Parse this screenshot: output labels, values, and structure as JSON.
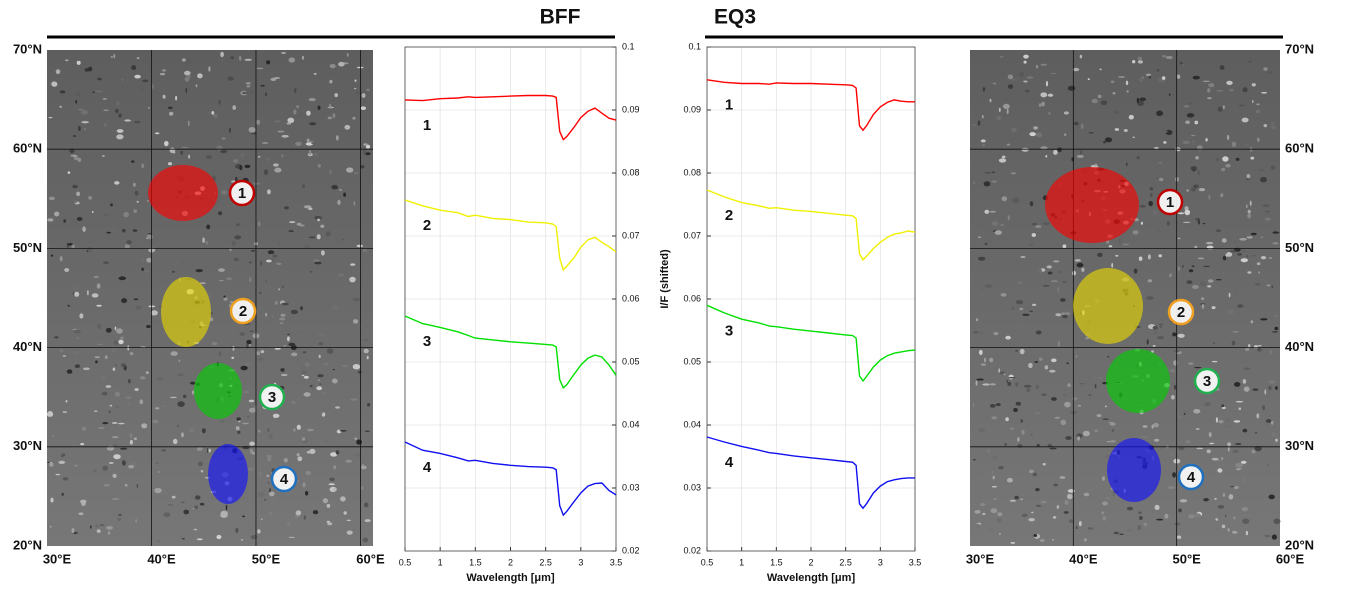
{
  "headers": [
    "BFF",
    "EQ3"
  ],
  "maps": [
    {
      "xlim": [
        30,
        61.2
      ],
      "ylim": [
        20,
        70
      ],
      "xticks": [
        {
          "value": 30,
          "label": "30°E"
        },
        {
          "value": 40,
          "label": "40°E"
        },
        {
          "value": 50,
          "label": "50°E"
        },
        {
          "value": 60,
          "label": "60°E"
        }
      ],
      "yticks": [
        {
          "value": 20,
          "label": "20°N"
        },
        {
          "value": 30,
          "label": "30°N"
        },
        {
          "value": 40,
          "label": "40°N"
        },
        {
          "value": 50,
          "label": "50°N"
        },
        {
          "value": 60,
          "label": "60°N"
        },
        {
          "value": 70,
          "label": "70°N"
        }
      ],
      "yaxis_side": "left",
      "regions": [
        {
          "label": "1",
          "color": "#ff0000",
          "label_color": "#c00000"
        },
        {
          "label": "2",
          "color": "#e8d800",
          "label_color": "#f0a020"
        },
        {
          "label": "3",
          "color": "#00d000",
          "label_color": "#20b050"
        },
        {
          "label": "4",
          "color": "#1010ff",
          "label_color": "#2070c0"
        }
      ]
    },
    {
      "xlim": [
        30,
        60
      ],
      "ylim": [
        20,
        70
      ],
      "xticks": [
        {
          "value": 30,
          "label": "30°E"
        },
        {
          "value": 40,
          "label": "40°E"
        },
        {
          "value": 50,
          "label": "50°E"
        },
        {
          "value": 60,
          "label": "60°E"
        }
      ],
      "yticks": [
        {
          "value": 20,
          "label": "20°N"
        },
        {
          "value": 30,
          "label": "30°N"
        },
        {
          "value": 40,
          "label": "40°N"
        },
        {
          "value": 50,
          "label": "50°N"
        },
        {
          "value": 60,
          "label": "60°N"
        },
        {
          "value": 70,
          "label": "70°N"
        }
      ],
      "yaxis_side": "right",
      "regions": [
        {
          "label": "1",
          "color": "#ff0000",
          "label_color": "#c00000"
        },
        {
          "label": "2",
          "color": "#e8d800",
          "label_color": "#f0a020"
        },
        {
          "label": "3",
          "color": "#00d000",
          "label_color": "#20b050"
        },
        {
          "label": "4",
          "color": "#1010ff",
          "label_color": "#2070c0"
        }
      ]
    }
  ],
  "chart_data": [
    {
      "type": "line",
      "x_label": "Wavelength [μm]",
      "yaxis_side": "right",
      "grid": true,
      "xlim": [
        0.5,
        3.5
      ],
      "xticks": [
        0.5,
        1,
        1.5,
        2,
        2.5,
        3,
        3.5
      ],
      "ylim": [
        0.02,
        0.1
      ],
      "yticks": [
        0.02,
        0.03,
        0.04,
        0.05,
        0.06,
        0.07,
        0.08,
        0.09,
        0.1
      ],
      "x": [
        0.5,
        0.75,
        1,
        1.25,
        1.4,
        1.5,
        1.75,
        2,
        2.25,
        2.5,
        2.6,
        2.65,
        2.7,
        2.75,
        2.8,
        2.9,
        3,
        3.1,
        3.2,
        3.3,
        3.4,
        3.5
      ],
      "series": [
        {
          "name": "1",
          "color": "#ff0000",
          "label_color": "#c00000",
          "values": [
            0.0916,
            0.0915,
            0.0918,
            0.0919,
            0.0921,
            0.092,
            0.0921,
            0.0922,
            0.0923,
            0.0923,
            0.0922,
            0.092,
            0.0866,
            0.0853,
            0.0858,
            0.0872,
            0.0888,
            0.0898,
            0.0903,
            0.0895,
            0.0887,
            0.0884
          ]
        },
        {
          "name": "2",
          "color": "#f0f000",
          "label_color": "#c89010",
          "values": [
            0.0757,
            0.0748,
            0.0741,
            0.0737,
            0.0731,
            0.0733,
            0.0728,
            0.0726,
            0.0722,
            0.0721,
            0.0719,
            0.0715,
            0.0665,
            0.0646,
            0.0652,
            0.0665,
            0.0682,
            0.0694,
            0.0698,
            0.069,
            0.0683,
            0.0675
          ]
        },
        {
          "name": "3",
          "color": "#00e000",
          "label_color": "#20b050",
          "values": [
            0.0573,
            0.0561,
            0.0555,
            0.0548,
            0.0542,
            0.0538,
            0.0535,
            0.0532,
            0.053,
            0.0528,
            0.0527,
            0.0524,
            0.0472,
            0.0459,
            0.0464,
            0.048,
            0.0495,
            0.0506,
            0.0511,
            0.0508,
            0.0495,
            0.0479
          ]
        },
        {
          "name": "4",
          "color": "#1010f0",
          "label_color": "#2070c0",
          "values": [
            0.0373,
            0.036,
            0.0355,
            0.0348,
            0.0343,
            0.0344,
            0.0339,
            0.0336,
            0.0334,
            0.0333,
            0.0332,
            0.0329,
            0.0272,
            0.0257,
            0.0263,
            0.0278,
            0.0292,
            0.0303,
            0.0307,
            0.0308,
            0.0296,
            0.0289
          ]
        }
      ]
    },
    {
      "type": "line",
      "x_label": "Wavelength [μm]",
      "y_label": "I/F (shifted)",
      "yaxis_side": "left",
      "grid": true,
      "xlim": [
        0.5,
        3.5
      ],
      "xticks": [
        0.5,
        1,
        1.5,
        2,
        2.5,
        3,
        3.5
      ],
      "ylim": [
        0.02,
        0.1
      ],
      "yticks": [
        0.02,
        0.03,
        0.04,
        0.05,
        0.06,
        0.07,
        0.08,
        0.09,
        0.1
      ],
      "x": [
        0.5,
        0.75,
        1,
        1.25,
        1.4,
        1.5,
        1.75,
        2,
        2.25,
        2.5,
        2.6,
        2.65,
        2.7,
        2.75,
        2.8,
        2.9,
        3,
        3.1,
        3.2,
        3.3,
        3.4,
        3.5
      ],
      "series": [
        {
          "name": "1",
          "color": "#ff0000",
          "label_color": "#c00000",
          "values": [
            0.0948,
            0.0944,
            0.0942,
            0.0942,
            0.0941,
            0.0943,
            0.0942,
            0.0942,
            0.0941,
            0.094,
            0.0939,
            0.0935,
            0.0875,
            0.0868,
            0.0875,
            0.0893,
            0.0905,
            0.0912,
            0.0916,
            0.0914,
            0.0913,
            0.0913
          ]
        },
        {
          "name": "2",
          "color": "#f0f000",
          "label_color": "#c89010",
          "values": [
            0.0773,
            0.0762,
            0.0753,
            0.0748,
            0.0744,
            0.0745,
            0.0741,
            0.0739,
            0.0736,
            0.0733,
            0.0732,
            0.0728,
            0.0672,
            0.0662,
            0.0668,
            0.068,
            0.069,
            0.0698,
            0.0703,
            0.0705,
            0.0708,
            0.0706
          ]
        },
        {
          "name": "3",
          "color": "#00e000",
          "label_color": "#20b050",
          "values": [
            0.059,
            0.0578,
            0.0568,
            0.0562,
            0.0557,
            0.0556,
            0.0552,
            0.0549,
            0.0546,
            0.0543,
            0.0542,
            0.0538,
            0.0478,
            0.047,
            0.0477,
            0.0492,
            0.0503,
            0.051,
            0.0514,
            0.0516,
            0.0518,
            0.0519
          ]
        },
        {
          "name": "4",
          "color": "#1010f0",
          "label_color": "#2070c0",
          "values": [
            0.0381,
            0.0373,
            0.0366,
            0.036,
            0.0356,
            0.0355,
            0.0351,
            0.0348,
            0.0345,
            0.0342,
            0.0341,
            0.0336,
            0.0275,
            0.0268,
            0.0275,
            0.0292,
            0.0303,
            0.031,
            0.0313,
            0.0315,
            0.0316,
            0.0316
          ]
        }
      ]
    }
  ]
}
